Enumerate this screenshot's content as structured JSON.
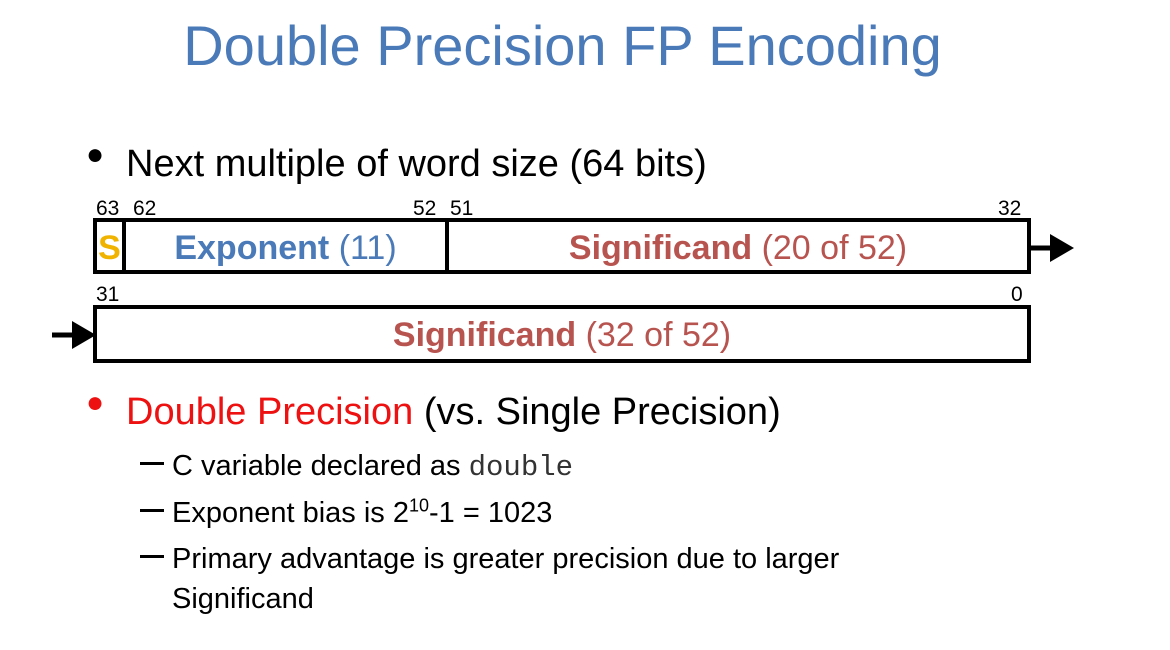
{
  "title": "Double Precision FP Encoding",
  "bullet1": {
    "text": "Next multiple of word size (64 bits)"
  },
  "word1": {
    "bit_labels": {
      "b63": "63",
      "b62": "62",
      "b52": "52",
      "b51": "51",
      "b32": "32"
    },
    "sign": {
      "label": "S",
      "color": "#f0b400"
    },
    "exponent": {
      "name": "Exponent",
      "detail": " (11)",
      "color": "#4a7ab8"
    },
    "significand": {
      "name": "Significand",
      "detail": " (20 of 52)",
      "color": "#b85450"
    }
  },
  "word2": {
    "bit_labels": {
      "b31": "31",
      "b0": "0"
    },
    "significand": {
      "name": "Significand",
      "detail": " (32 of 52)",
      "color": "#b85450"
    }
  },
  "bullet2": {
    "highlight": "Double Precision",
    "rest": " (vs. Single Precision)",
    "highlight_color": "#ee1111",
    "subs": {
      "s1_text": "C variable declared as ",
      "s1_code": "double",
      "s2_pre": "Exponent bias is 2",
      "s2_sup": "10",
      "s2_post": "-1 = 1023",
      "s3_line1": "Primary advantage is greater precision due to larger",
      "s3_line2": "Significand"
    }
  }
}
